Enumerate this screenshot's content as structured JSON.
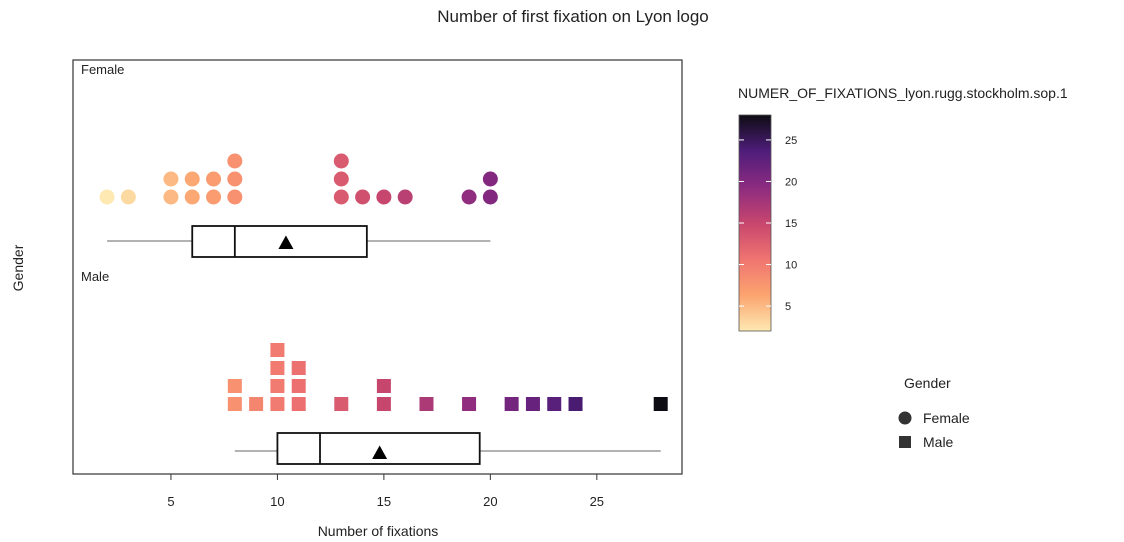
{
  "chart_data": {
    "type": "dotplot",
    "title": "Number of first fixation on Lyon logo",
    "xlabel": "Number of fixations",
    "ylabel": "Gender",
    "xlim": [
      0.4,
      29.0
    ],
    "xticks": [
      5,
      10,
      15,
      20,
      25
    ],
    "grid": false,
    "panels": [
      {
        "name": "Female",
        "shape": "circle",
        "dot_stacks": [
          {
            "x": 2,
            "count": 1
          },
          {
            "x": 3,
            "count": 1
          },
          {
            "x": 5,
            "count": 2
          },
          {
            "x": 6,
            "count": 2
          },
          {
            "x": 7,
            "count": 2
          },
          {
            "x": 8,
            "count": 3
          },
          {
            "x": 13,
            "count": 3
          },
          {
            "x": 14,
            "count": 1
          },
          {
            "x": 15,
            "count": 1
          },
          {
            "x": 16,
            "count": 1
          },
          {
            "x": 19,
            "count": 1
          },
          {
            "x": 20,
            "count": 2
          }
        ],
        "boxplot": {
          "whisker_low": 2,
          "q1": 6,
          "median": 8,
          "q3": 14.2,
          "whisker_high": 20,
          "mean": 10.4
        }
      },
      {
        "name": "Male",
        "shape": "square",
        "dot_stacks": [
          {
            "x": 8,
            "count": 2
          },
          {
            "x": 9,
            "count": 1
          },
          {
            "x": 10,
            "count": 4
          },
          {
            "x": 11,
            "count": 3
          },
          {
            "x": 13,
            "count": 1
          },
          {
            "x": 15,
            "count": 2
          },
          {
            "x": 17,
            "count": 1
          },
          {
            "x": 19,
            "count": 1
          },
          {
            "x": 21,
            "count": 1
          },
          {
            "x": 22,
            "count": 1
          },
          {
            "x": 23,
            "count": 1
          },
          {
            "x": 24,
            "count": 1
          },
          {
            "x": 28,
            "count": 1
          }
        ],
        "boxplot": {
          "whisker_low": 8,
          "q1": 10,
          "median": 12,
          "q3": 19.5,
          "whisker_high": 28,
          "mean": 14.8
        }
      }
    ],
    "color_scale": {
      "title": "NUMER_OF_FIXATIONS_lyon.rugg.stockholm.sop.1",
      "min": 2,
      "max": 28,
      "ticks": [
        5,
        10,
        15,
        20,
        25
      ],
      "stops": [
        "#fde9b1",
        "#fca36f",
        "#ef7470",
        "#c7466e",
        "#8c2b80",
        "#4e1d7a",
        "#0d0c13"
      ]
    },
    "shape_legend": {
      "title": "Gender",
      "placement": "right",
      "entries": [
        {
          "label": "Female",
          "shape": "circle"
        },
        {
          "label": "Male",
          "shape": "square"
        }
      ]
    }
  }
}
